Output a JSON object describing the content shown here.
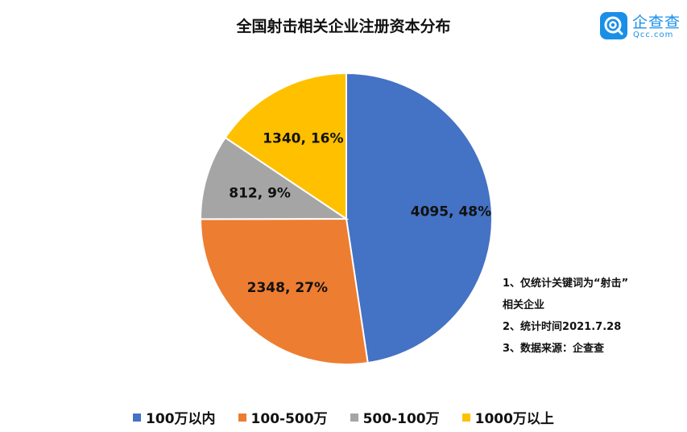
{
  "chart_data": {
    "type": "pie",
    "title": "全国射击相关企业注册资本分布",
    "categories": [
      "100万以内",
      "100-500万",
      "500-100万",
      "1000万以上"
    ],
    "values": [
      4095,
      2348,
      812,
      1340
    ],
    "percents": [
      "48%",
      "27%",
      "9%",
      "16%"
    ],
    "data_labels": [
      "4095, 48%",
      "2348, 27%",
      "812, 9%",
      "1340, 16%"
    ],
    "colors": [
      "#4472c4",
      "#ed7d31",
      "#a5a5a5",
      "#ffc000"
    ],
    "legend_position": "bottom"
  },
  "brand": {
    "name": "企查查",
    "domain": "Qcc.com",
    "icon": "qcc-logo-icon"
  },
  "notes": [
    "1、仅统计关键词为“射击”",
    "相关企业",
    "2、统计时间2021.7.28",
    "3、数据来源：企查查"
  ]
}
